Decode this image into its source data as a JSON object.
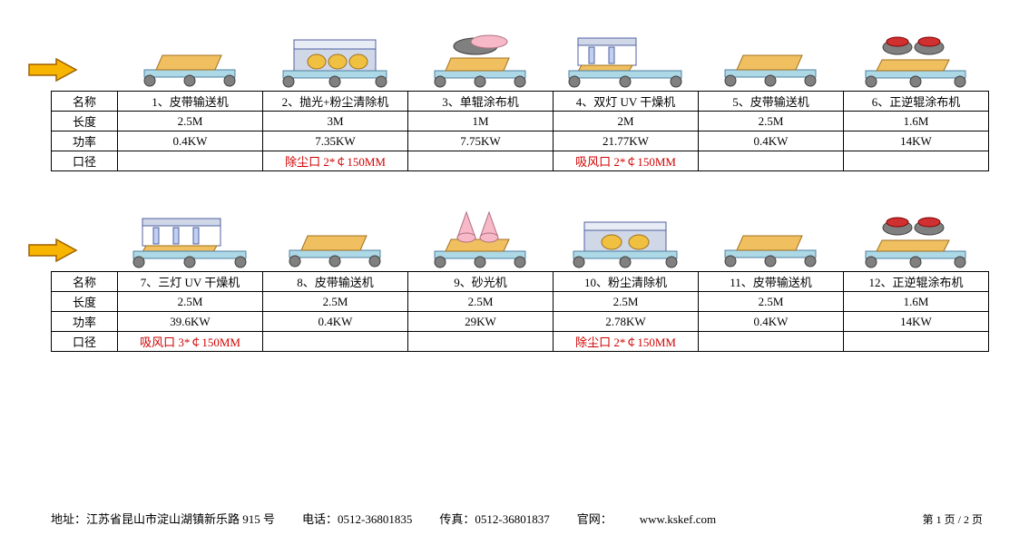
{
  "row_headers": {
    "name": "名称",
    "length": "长度",
    "power": "功率",
    "diameter": "口径"
  },
  "tables": [
    {
      "items": [
        {
          "icon": "conveyor",
          "name": "1、皮带输送机",
          "length": "2.5M",
          "power": "0.4KW",
          "diameter": ""
        },
        {
          "icon": "polish-dust",
          "name": "2、抛光+粉尘清除机",
          "length": "3M",
          "power": "7.35KW",
          "diameter": "除尘口 2*￠150MM",
          "diameter_red": true
        },
        {
          "icon": "single-roller",
          "name": "3、单辊涂布机",
          "length": "1M",
          "power": "7.75KW",
          "diameter": ""
        },
        {
          "icon": "uv-2lamp",
          "name": "4、双灯 UV 干燥机",
          "length": "2M",
          "power": "21.77KW",
          "diameter": "吸风口 2*￠150MM",
          "diameter_red": true
        },
        {
          "icon": "conveyor",
          "name": "5、皮带输送机",
          "length": "2.5M",
          "power": "0.4KW",
          "diameter": ""
        },
        {
          "icon": "double-roller",
          "name": "6、正逆辊涂布机",
          "length": "1.6M",
          "power": "14KW",
          "diameter": ""
        }
      ]
    },
    {
      "items": [
        {
          "icon": "uv-3lamp",
          "name": "7、三灯 UV 干燥机",
          "length": "2.5M",
          "power": "39.6KW",
          "diameter": "吸风口 3*￠150MM",
          "diameter_red": true
        },
        {
          "icon": "conveyor",
          "name": "8、皮带输送机",
          "length": "2.5M",
          "power": "0.4KW",
          "diameter": ""
        },
        {
          "icon": "sander",
          "name": "9、砂光机",
          "length": "2.5M",
          "power": "29KW",
          "diameter": ""
        },
        {
          "icon": "dust-remover",
          "name": "10、粉尘清除机",
          "length": "2.5M",
          "power": "2.78KW",
          "diameter": "除尘口 2*￠150MM",
          "diameter_red": true
        },
        {
          "icon": "conveyor",
          "name": "11、皮带输送机",
          "length": "2.5M",
          "power": "0.4KW",
          "diameter": ""
        },
        {
          "icon": "double-roller",
          "name": "12、正逆辊涂布机",
          "length": "1.6M",
          "power": "14KW",
          "diameter": ""
        }
      ]
    }
  ],
  "footer": {
    "address_label": "地址：",
    "address": "江苏省昆山市淀山湖镇新乐路 915 号",
    "phone_label": "电话：",
    "phone": "0512-36801835",
    "fax_label": "传真：",
    "fax": "0512-36801837",
    "web_label": "官网：",
    "web": "www.kskef.com",
    "page": "第 1 页 / 2 页"
  },
  "colors": {
    "arrow_fill": "#f7b500",
    "arrow_stroke": "#a06000",
    "conveyor_belt": "#add8e6",
    "conveyor_board": "#f0c060",
    "roller_gray": "#808080",
    "machine_body": "#d0d8e8",
    "machine_stroke": "#5060a0",
    "yellow_roller": "#f0c040",
    "pink": "#f7b8c8",
    "red_roller": "#d03030",
    "table_border": "#000000",
    "text_red": "#d00000"
  }
}
